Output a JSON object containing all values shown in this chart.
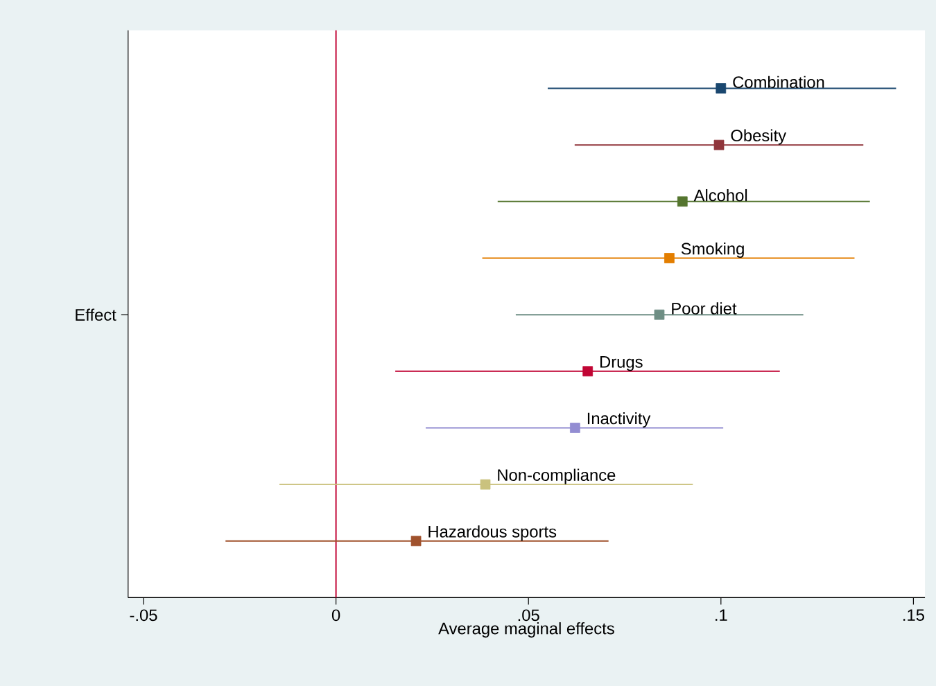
{
  "chart_data": {
    "type": "scatter",
    "orientation": "horizontal",
    "xlabel": "Average maginal effects",
    "categories": [
      null,
      null,
      null,
      null,
      "Effect",
      null,
      null,
      null,
      null
    ],
    "xlim": [
      -0.054,
      0.153
    ],
    "xticks": [
      {
        "value": -0.05,
        "label": "-.05"
      },
      {
        "value": 0,
        "label": "0"
      },
      {
        "value": 0.05,
        "label": ".05"
      },
      {
        "value": 0.1,
        "label": ".1"
      },
      {
        "value": 0.15,
        "label": ".15"
      }
    ],
    "marker": "square",
    "grid": false,
    "ref_lines": [
      {
        "axis": "x",
        "value": 0,
        "color": "#c10534"
      }
    ],
    "series": [
      {
        "name": "Combination",
        "color": "#1a476f",
        "values": [
          0.1,
          null,
          null,
          null,
          null,
          null,
          null,
          null,
          null
        ],
        "errors": [
          [
            0.055,
            0.1455
          ],
          null,
          null,
          null,
          null,
          null,
          null,
          null,
          null
        ]
      },
      {
        "name": "Obesity",
        "color": "#90353b",
        "values": [
          null,
          0.0995,
          null,
          null,
          null,
          null,
          null,
          null,
          null
        ],
        "errors": [
          null,
          [
            0.062,
            0.137
          ],
          null,
          null,
          null,
          null,
          null,
          null,
          null
        ]
      },
      {
        "name": "Alcohol",
        "color": "#55752f",
        "values": [
          null,
          null,
          0.09,
          null,
          null,
          null,
          null,
          null,
          null
        ],
        "errors": [
          null,
          null,
          [
            0.042,
            0.1387
          ],
          null,
          null,
          null,
          null,
          null,
          null
        ]
      },
      {
        "name": "Smoking",
        "color": "#e37e00",
        "values": [
          null,
          null,
          null,
          0.0866,
          null,
          null,
          null,
          null,
          null
        ],
        "errors": [
          null,
          null,
          null,
          [
            0.038,
            0.1347
          ],
          null,
          null,
          null,
          null,
          null
        ]
      },
      {
        "name": "Poor diet",
        "color": "#6e8e84",
        "values": [
          null,
          null,
          null,
          null,
          0.084,
          null,
          null,
          null,
          null
        ],
        "errors": [
          null,
          null,
          null,
          null,
          [
            0.0467,
            0.1214
          ],
          null,
          null,
          null,
          null
        ]
      },
      {
        "name": "Drugs",
        "color": "#c10534",
        "values": [
          null,
          null,
          null,
          null,
          null,
          0.0654,
          null,
          null,
          null
        ],
        "errors": [
          null,
          null,
          null,
          null,
          null,
          [
            0.0154,
            0.1153
          ],
          null,
          null,
          null
        ]
      },
      {
        "name": "Inactivity",
        "color": "#938dd2",
        "values": [
          null,
          null,
          null,
          null,
          null,
          null,
          0.0621,
          null,
          null
        ],
        "errors": [
          null,
          null,
          null,
          null,
          null,
          null,
          [
            0.0233,
            0.1006
          ],
          null,
          null
        ]
      },
      {
        "name": "Non-compliance",
        "color": "#cac27e",
        "values": [
          null,
          null,
          null,
          null,
          null,
          null,
          null,
          0.0388,
          null
        ],
        "errors": [
          null,
          null,
          null,
          null,
          null,
          null,
          null,
          [
            -0.0147,
            0.0927
          ],
          null
        ]
      },
      {
        "name": "Hazardous sports",
        "color": "#a0522d",
        "values": [
          null,
          null,
          null,
          null,
          null,
          null,
          null,
          null,
          0.0208
        ],
        "errors": [
          null,
          null,
          null,
          null,
          null,
          null,
          null,
          null,
          [
            -0.0287,
            0.0708
          ]
        ]
      }
    ]
  }
}
